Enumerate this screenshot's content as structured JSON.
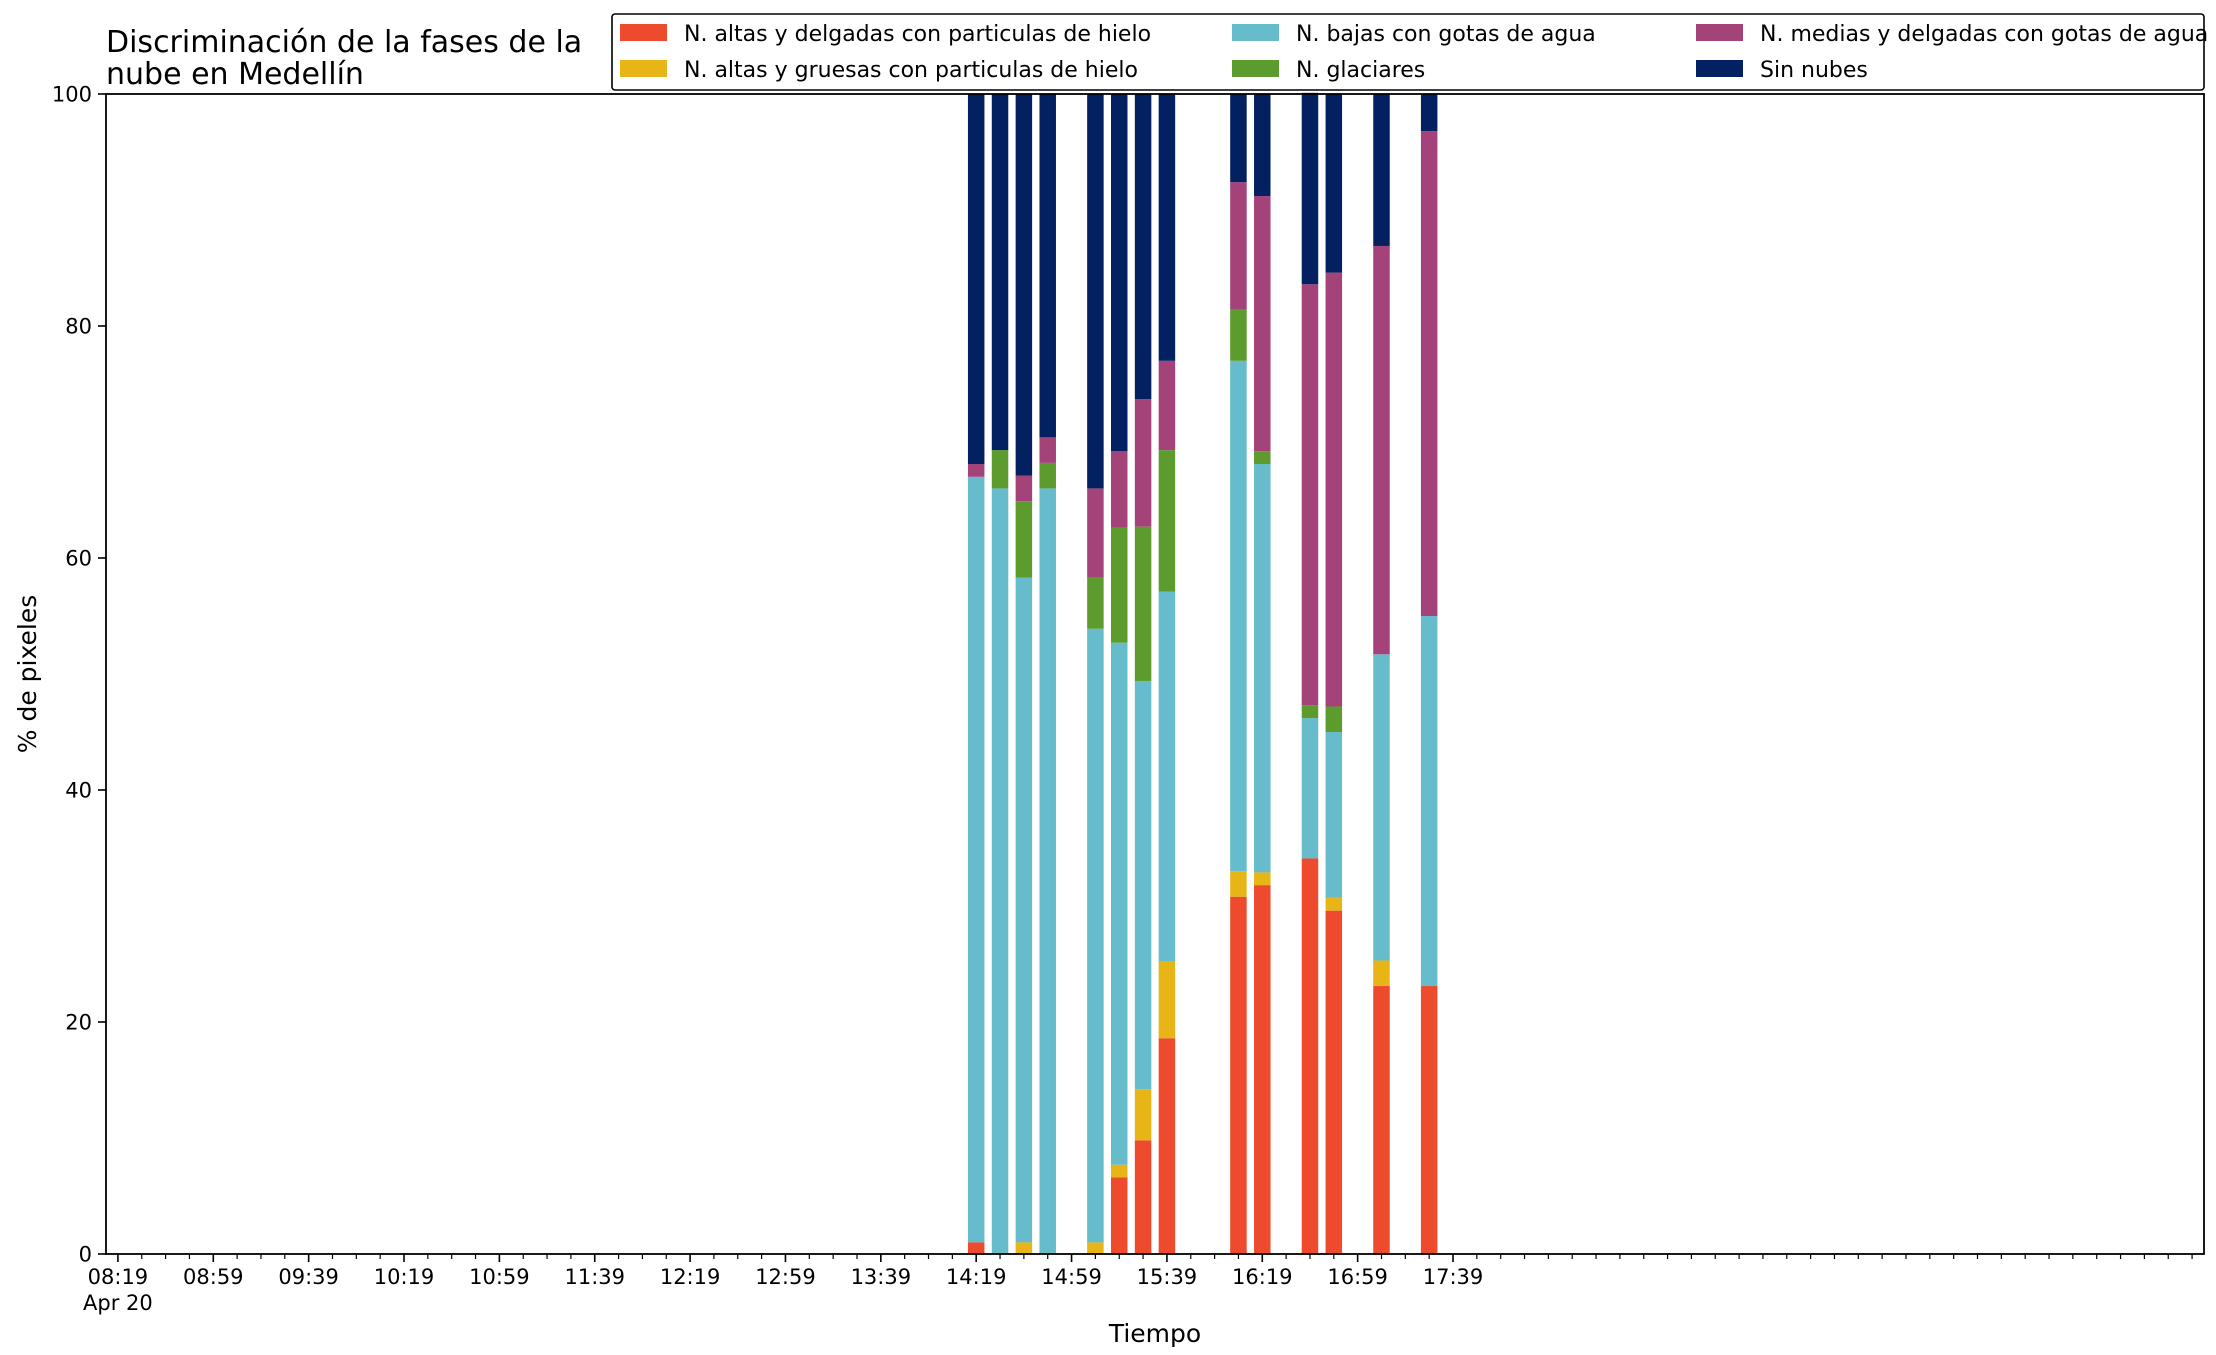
{
  "chart_data": {
    "type": "bar",
    "stacked": true,
    "title_lines": [
      "Discriminación de la fases de la",
      "nube en Medellín"
    ],
    "xlabel": "Tiempo",
    "ylabel": "% de pixeles",
    "ylim": [
      0,
      100
    ],
    "yticks": [
      0,
      20,
      40,
      60,
      80,
      100
    ],
    "xlim_minutes": [
      -5,
      875
    ],
    "xticks": [
      {
        "minute": 0,
        "label": "08:19",
        "sublabel": "Apr 20"
      },
      {
        "minute": 40,
        "label": "08:59"
      },
      {
        "minute": 80,
        "label": "09:39"
      },
      {
        "minute": 120,
        "label": "10:19"
      },
      {
        "minute": 160,
        "label": "10:59"
      },
      {
        "minute": 200,
        "label": "11:39"
      },
      {
        "minute": 240,
        "label": "12:19"
      },
      {
        "minute": 280,
        "label": "12:59"
      },
      {
        "minute": 320,
        "label": "13:39"
      },
      {
        "minute": 360,
        "label": "14:19"
      },
      {
        "minute": 400,
        "label": "14:59"
      },
      {
        "minute": 440,
        "label": "15:39"
      },
      {
        "minute": 480,
        "label": "16:19"
      },
      {
        "minute": 520,
        "label": "16:59"
      },
      {
        "minute": 560,
        "label": "17:39"
      }
    ],
    "minor_tick_step": 10,
    "grid": false,
    "legend_position": "top-right",
    "x_minutes": [
      360,
      370,
      380,
      390,
      410,
      420,
      430,
      440,
      470,
      480,
      500,
      510,
      530,
      550
    ],
    "series": [
      {
        "name": "N. altas y delgadas con particulas de hielo",
        "color": "#EE4A2D",
        "values": [
          1,
          0,
          0,
          0,
          0,
          6.6,
          9.8,
          18.6,
          30.8,
          31.8,
          34.1,
          29.6,
          23.1,
          23.1
        ]
      },
      {
        "name": "N. altas y gruesas con particulas de hielo",
        "color": "#E7B516",
        "values": [
          0,
          0,
          1,
          0,
          1,
          1.1,
          4.4,
          6.6,
          2.2,
          1.1,
          0,
          1.1,
          2.2,
          0
        ]
      },
      {
        "name": "N. bajas con gotas de agua",
        "color": "#66BCCA",
        "values": [
          66,
          66,
          57.3,
          66,
          52.9,
          45,
          35.2,
          31.9,
          44,
          35.2,
          12.1,
          14.3,
          26.4,
          31.9
        ]
      },
      {
        "name": "N. glaciares",
        "color": "#5C9C2E",
        "values": [
          0,
          3.3,
          6.6,
          2.2,
          4.4,
          9.9,
          13.3,
          12.2,
          4.4,
          1.1,
          1.1,
          2.2,
          0,
          0
        ]
      },
      {
        "name": "N. medias y delgadas con gotas de agua",
        "color": "#A3437A",
        "values": [
          1.1,
          0,
          2.2,
          2.2,
          7.7,
          6.6,
          11,
          7.7,
          11,
          22,
          36.3,
          37.4,
          35.2,
          41.8
        ]
      },
      {
        "name": "Sin nubes",
        "color": "#032061",
        "values": [
          31.9,
          30.7,
          32.9,
          29.6,
          34,
          30.8,
          26.3,
          23,
          7.6,
          8.8,
          16.5,
          15.4,
          13.1,
          3.2
        ]
      }
    ]
  }
}
